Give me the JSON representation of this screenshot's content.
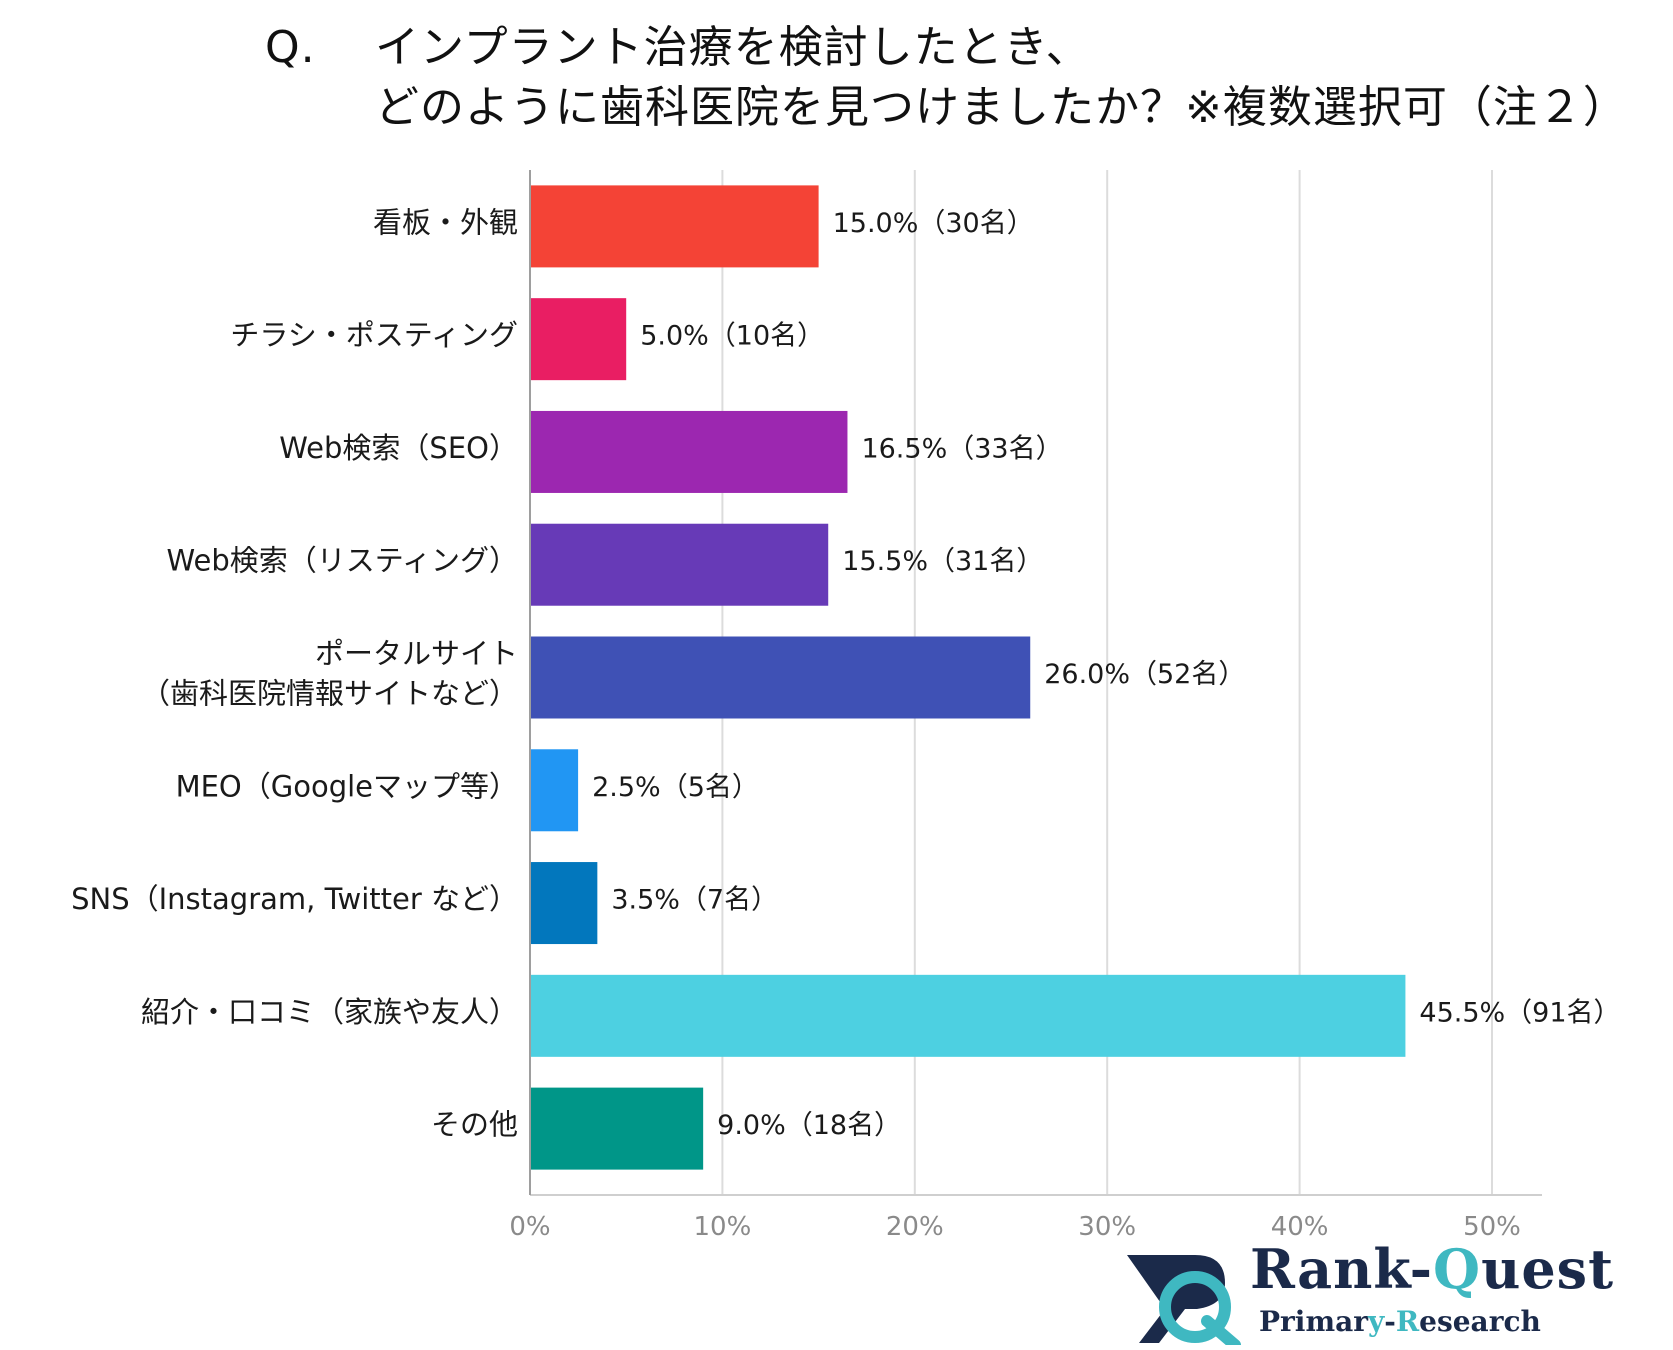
{
  "title": {
    "q": "Q.",
    "line1": "インプラント治療を検討したとき、",
    "line2": "どのように歯科医院を見つけましたか？※複数選択可（注２）"
  },
  "chart_data": {
    "type": "bar",
    "orientation": "horizontal",
    "categories": [
      [
        "看板・外観"
      ],
      [
        "チラシ・ポスティング"
      ],
      [
        "Web検索（SEO）"
      ],
      [
        "Web検索（リスティング）"
      ],
      [
        "ポータルサイト",
        "（歯科医院情報サイトなど）"
      ],
      [
        "MEO（Googleマップ等）"
      ],
      [
        "SNS（Instagram, Twitter など）"
      ],
      [
        "紹介・口コミ（家族や友人）"
      ],
      [
        "その他"
      ]
    ],
    "values": [
      15.0,
      5.0,
      16.5,
      15.5,
      26.0,
      2.5,
      3.5,
      45.5,
      9.0
    ],
    "value_labels": [
      "15.0%（30名）",
      "5.0%（10名）",
      "16.5%（33名）",
      "15.5%（31名）",
      "26.0%（52名）",
      "2.5%（5名）",
      "3.5%（7名）",
      "45.5%（91名）",
      "9.0%（18名）"
    ],
    "colors": [
      "#f44336",
      "#e91e63",
      "#9c27b0",
      "#673ab7",
      "#3f51b5",
      "#2196f3",
      "#0277bd",
      "#4dd0e1",
      "#009688"
    ],
    "xlim": [
      0,
      50
    ],
    "xticks": [
      0,
      10,
      20,
      30,
      40,
      50
    ],
    "xtick_labels": [
      "0%",
      "10%",
      "20%",
      "30%",
      "40%",
      "50%"
    ],
    "grid": true,
    "xlabel": "",
    "ylabel": ""
  },
  "logo": {
    "name_a": "Rank-",
    "name_b": "Q",
    "name_c": "uest",
    "sub_a": "Primar",
    "sub_b": "y",
    "sub_c": "-",
    "sub_d": "R",
    "sub_e": "esearch",
    "colors": {
      "navy": "#1b2a4a",
      "teal": "#3fb8c1"
    }
  }
}
